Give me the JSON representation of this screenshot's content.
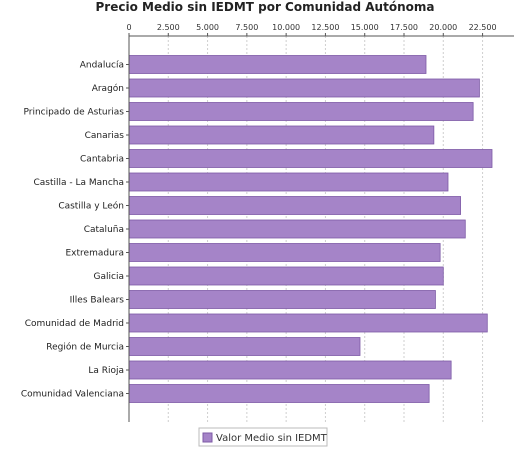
{
  "chart_data": {
    "type": "bar",
    "orientation": "horizontal",
    "title": "Precio Medio sin IEDMT por Comunidad Autónoma",
    "xlabel": "",
    "ylabel": "",
    "xlim": [
      0,
      24500
    ],
    "ticks": [
      0,
      2500,
      5000,
      7500,
      10000,
      12500,
      15000,
      17500,
      20000,
      22500
    ],
    "tick_labels": [
      "0",
      "2.500",
      "5.000",
      "7.500",
      "10.000",
      "12.500",
      "15.000",
      "17.500",
      "20.000",
      "22.500"
    ],
    "grid": true,
    "legend_position": "bottom",
    "bar_color": "#a584c8",
    "bar_edge": "#7d5aa6",
    "categories": [
      "Andalucía",
      "Aragón",
      "Principado de Asturias",
      "Canarias",
      "Cantabria",
      "Castilla - La Mancha",
      "Castilla y León",
      "Cataluña",
      "Extremadura",
      "Galicia",
      "Illes Balears",
      "Comunidad de Madrid",
      "Región de Murcia",
      "La Rioja",
      "Comunidad Valenciana"
    ],
    "series": [
      {
        "name": "Valor Medio sin IEDMT",
        "values": [
          18900,
          22300,
          21900,
          19400,
          23100,
          20300,
          21100,
          21400,
          19800,
          20000,
          19500,
          22800,
          14700,
          20500,
          19100
        ]
      }
    ]
  }
}
